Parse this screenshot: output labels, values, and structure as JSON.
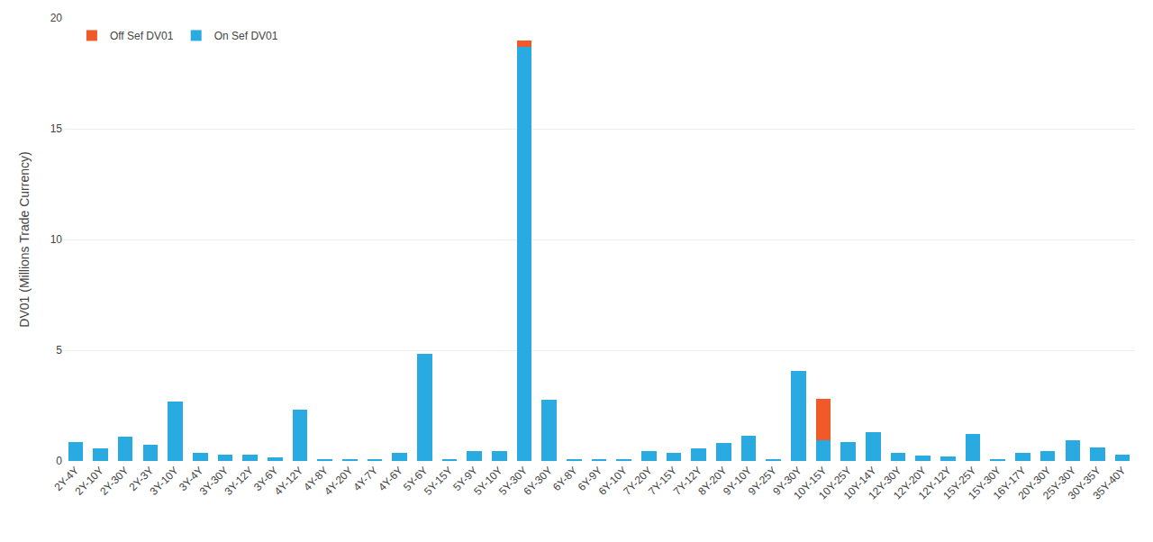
{
  "chart_data": {
    "type": "bar",
    "categories": [
      "2Y-4Y",
      "2Y-10Y",
      "2Y-30Y",
      "2Y-3Y",
      "3Y-10Y",
      "3Y-4Y",
      "3Y-30Y",
      "3Y-12Y",
      "3Y-6Y",
      "4Y-12Y",
      "4Y-8Y",
      "4Y-20Y",
      "4Y-7Y",
      "4Y-6Y",
      "5Y-6Y",
      "5Y-15Y",
      "5Y-9Y",
      "5Y-10Y",
      "5Y-30Y",
      "6Y-30Y",
      "6Y-8Y",
      "6Y-9Y",
      "6Y-10Y",
      "7Y-20Y",
      "7Y-15Y",
      "7Y-12Y",
      "8Y-20Y",
      "9Y-10Y",
      "9Y-25Y",
      "9Y-30Y",
      "10Y-15Y",
      "10Y-25Y",
      "10Y-14Y",
      "12Y-30Y",
      "12Y-20Y",
      "12Y-12Y",
      "15Y-25Y",
      "15Y-30Y",
      "16Y-17Y",
      "20Y-30Y",
      "25Y-30Y",
      "30Y-35Y",
      "35Y-40Y"
    ],
    "series": [
      {
        "name": "On Sef DV01",
        "color": "#29ABE2",
        "values": [
          0.85,
          0.55,
          1.1,
          0.75,
          2.7,
          0.35,
          0.3,
          0.3,
          0.15,
          2.3,
          0.05,
          0.08,
          0.08,
          0.35,
          4.85,
          0.05,
          0.45,
          0.45,
          18.7,
          2.75,
          0.08,
          0.05,
          0.08,
          0.45,
          0.35,
          0.55,
          0.8,
          1.15,
          0.05,
          4.05,
          0.95,
          0.85,
          1.3,
          0.35,
          0.25,
          0.2,
          1.2,
          0.1,
          0.35,
          0.45,
          0.95,
          0.6,
          0.3
        ]
      },
      {
        "name": "Off Sef DV01",
        "color": "#F05A28",
        "values": [
          0,
          0,
          0,
          0,
          0,
          0,
          0,
          0,
          0,
          0,
          0,
          0,
          0,
          0,
          0,
          0,
          0,
          0,
          0.3,
          0,
          0,
          0,
          0,
          0,
          0,
          0,
          0,
          0,
          0,
          0,
          1.85,
          0,
          0,
          0,
          0,
          0,
          0,
          0,
          0,
          0,
          0,
          0,
          0
        ]
      }
    ],
    "ylabel": "DV01 (Millions Trade Currency)",
    "ylim": [
      0,
      20
    ],
    "yticks": [
      0,
      5,
      10,
      15,
      20
    ],
    "grid": true,
    "legend": "upper left",
    "stacked": true
  }
}
